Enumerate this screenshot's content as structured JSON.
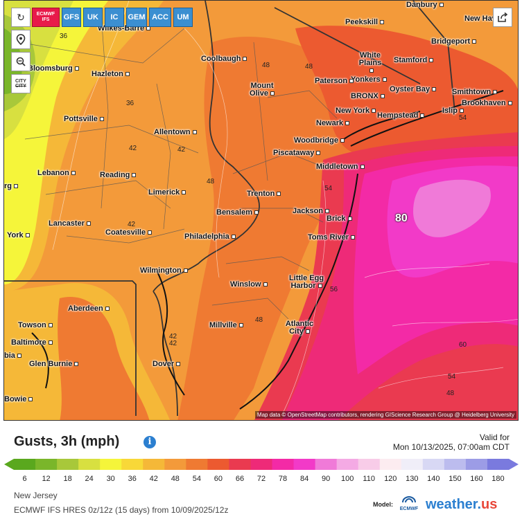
{
  "toolbar": {
    "models": [
      {
        "label": "ECMWF IFS",
        "active": true
      },
      {
        "label": "GFS",
        "active": false
      },
      {
        "label": "UK",
        "active": false
      },
      {
        "label": "IC",
        "active": false
      },
      {
        "label": "GEM",
        "active": false
      },
      {
        "label": "ACC",
        "active": false
      },
      {
        "label": "UM",
        "active": false
      }
    ],
    "refresh_icon": "refresh-icon",
    "location_icon": "location-pin-icon",
    "zoom_icon": "zoom-out-icon",
    "city_label": "CITY",
    "share_icon": "share-icon"
  },
  "map": {
    "cities": [
      {
        "name": "Wilkes-Barre"
      },
      {
        "name": "Bloomsburg"
      },
      {
        "name": "Hazleton"
      },
      {
        "name": "Coolbaugh"
      },
      {
        "name": "Peekskill"
      },
      {
        "name": "New Hav"
      },
      {
        "name": "Danbury"
      },
      {
        "name": "Bridgeport"
      },
      {
        "name": "White Plains"
      },
      {
        "name": "Stamford"
      },
      {
        "name": "Yonkers"
      },
      {
        "name": "Paterson"
      },
      {
        "name": "Mount Olive"
      },
      {
        "name": "BRONX"
      },
      {
        "name": "Oyster Bay"
      },
      {
        "name": "Smithtown"
      },
      {
        "name": "Brookhaven"
      },
      {
        "name": "New York"
      },
      {
        "name": "Newark"
      },
      {
        "name": "Hempstead"
      },
      {
        "name": "Islip"
      },
      {
        "name": "Pottsville"
      },
      {
        "name": "Allentown"
      },
      {
        "name": "Woodbridge"
      },
      {
        "name": "Piscataway"
      },
      {
        "name": "Lebanon"
      },
      {
        "name": "Reading"
      },
      {
        "name": "Middletown"
      },
      {
        "name": "Limerick"
      },
      {
        "name": "Trenton"
      },
      {
        "name": "Bensalem"
      },
      {
        "name": "Jackson"
      },
      {
        "name": "Brick"
      },
      {
        "name": "Lancaster"
      },
      {
        "name": "Coatesville"
      },
      {
        "name": "Toms River"
      },
      {
        "name": "York"
      },
      {
        "name": "Philadelphia"
      },
      {
        "name": "Wilmington"
      },
      {
        "name": "Winslow"
      },
      {
        "name": "Little Egg Harbor"
      },
      {
        "name": "Aberdeen"
      },
      {
        "name": "Towson"
      },
      {
        "name": "Millville"
      },
      {
        "name": "Atlantic City"
      },
      {
        "name": "Baltimore"
      },
      {
        "name": "Glen Burnie"
      },
      {
        "name": "Dover"
      },
      {
        "name": "Bowie"
      },
      {
        "name": "rg"
      },
      {
        "name": "bia"
      }
    ],
    "contour_labels": [
      "36",
      "36",
      "42",
      "42",
      "48",
      "48",
      "48",
      "48",
      "54",
      "54",
      "60",
      "54",
      "48",
      "42",
      "48",
      "56",
      "42",
      "42"
    ],
    "peak_label": "80",
    "attribution": "Map data © OpenStreetMap contributors, rendering GIScience Research Group @ Heidelberg University"
  },
  "legend": {
    "title": "Gusts, 3h (mph)",
    "valid_label": "Valid for",
    "valid_time": "Mon 10/13/2025, 07:00am CDT",
    "ticks": [
      "6",
      "12",
      "18",
      "24",
      "30",
      "36",
      "42",
      "48",
      "54",
      "60",
      "66",
      "72",
      "78",
      "84",
      "90",
      "100",
      "110",
      "120",
      "130",
      "140",
      "150",
      "160",
      "180"
    ],
    "colors": [
      "#5aa81e",
      "#7ab62a",
      "#a8c83a",
      "#d8e040",
      "#f5f53a",
      "#f8d838",
      "#f5b838",
      "#f39a3a",
      "#ef7a32",
      "#ec5a30",
      "#ea3a50",
      "#ee2a78",
      "#f32aa6",
      "#f23ac8",
      "#f07ad8",
      "#f4aae4",
      "#f8cce8",
      "#fcecf0",
      "#f0eef8",
      "#d8d8f4",
      "#bcbcee",
      "#9c9ce6",
      "#7a7ade"
    ]
  },
  "footer": {
    "region": "New Jersey",
    "run": "ECMWF IFS HRES 0z/12z (15 days) from 10/09/2025/12z",
    "model_label": "Model:",
    "model_logo": "ECMWF",
    "brand_main": "weather.",
    "brand_suffix": "us"
  }
}
